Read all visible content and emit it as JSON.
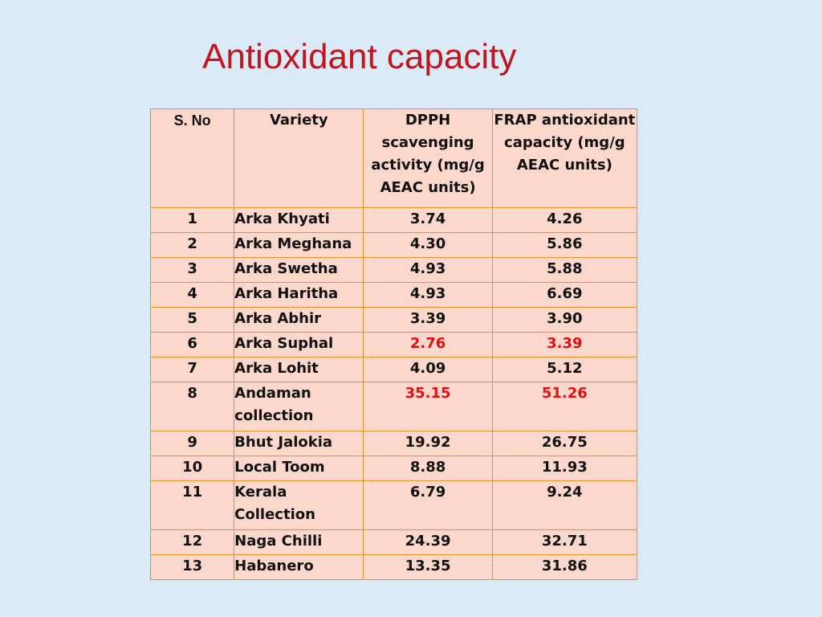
{
  "title": "Antioxidant capacity",
  "table": {
    "headers": {
      "sno": "S. No",
      "variety": "Variety",
      "dpph": "DPPH scavenging activity (mg/g AEAC units)",
      "frap": "FRAP antioxidant capacity (mg/g AEAC units)"
    },
    "highlight_color": "#e01010",
    "rows": [
      {
        "sno": "1",
        "variety": "Arka Khyati",
        "dpph": "3.74",
        "frap": "4.26"
      },
      {
        "sno": "2",
        "variety": "Arka Meghana",
        "dpph": "4.30",
        "frap": "5.86"
      },
      {
        "sno": "3",
        "variety": "Arka Swetha",
        "dpph": "4.93",
        "frap": "5.88"
      },
      {
        "sno": "4",
        "variety": "Arka Haritha",
        "dpph": "4.93",
        "frap": "6.69"
      },
      {
        "sno": "5",
        "variety": "Arka Abhir",
        "dpph": "3.39",
        "frap": "3.90"
      },
      {
        "sno": "6",
        "variety": "Arka Suphal",
        "dpph": "2.76",
        "frap": "3.39",
        "highlight": true
      },
      {
        "sno": "7",
        "variety": "Arka Lohit",
        "dpph": "4.09",
        "frap": "5.12"
      },
      {
        "sno": "8",
        "variety": "Andaman collection",
        "dpph": "35.15",
        "frap": "51.26",
        "highlight": true
      },
      {
        "sno": "9",
        "variety": "Bhut Jalokia",
        "dpph": "19.92",
        "frap": "26.75"
      },
      {
        "sno": "10",
        "variety": "Local Toom",
        "dpph": "8.88",
        "frap": "11.93"
      },
      {
        "sno": "11",
        "variety": "Kerala Collection",
        "dpph": "6.79",
        "frap": "9.24"
      },
      {
        "sno": "12",
        "variety": "Naga Chilli",
        "dpph": "24.39",
        "frap": "32.71"
      },
      {
        "sno": "13",
        "variety": "Habanero",
        "dpph": "13.35",
        "frap": "31.86"
      }
    ]
  }
}
